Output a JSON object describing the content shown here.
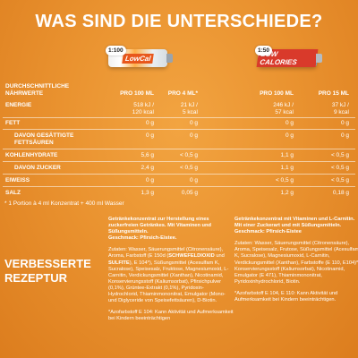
{
  "headline": "WAS SIND DIE UNTERSCHIEDE?",
  "products": [
    {
      "ratio": "1:100",
      "brand": "LowCal",
      "brand_sub": "STARK PLUS"
    },
    {
      "ratio": "1:50",
      "brand": "LOW CALORIES",
      "brand_sub": "PLUS"
    }
  ],
  "table": {
    "title_line1": "DURCHSCHNITTLICHE",
    "title_line2": "NÄHRWERTE",
    "headers": [
      "PRO 100 ML",
      "PRO 4 ML*",
      "PRO 100 ML",
      "PRO 15 ML"
    ],
    "rows": [
      {
        "label": "ENERGIE",
        "sub": false,
        "c1": "518 kJ / 120 kcal",
        "c1a": "518 kJ /",
        "c1b": "120 kcal",
        "c2a": "21 kJ /",
        "c2b": "5 kcal",
        "c3a": "246 kJ /",
        "c3b": "57 kcal",
        "c4a": "37 kJ /",
        "c4b": "9 kcal"
      },
      {
        "label": "FETT",
        "sub": false,
        "c1a": "0 g",
        "c2a": "0 g",
        "c3a": "0 g",
        "c4a": "0 g"
      },
      {
        "label": "DAVON GESÄTTIGTE",
        "label2": "FETTSÄUREN",
        "sub": true,
        "c1a": "0 g",
        "c2a": "0 g",
        "c3a": "0 g",
        "c4a": "0 g"
      },
      {
        "label": "KOHLENHYDRATE",
        "sub": false,
        "c1a": "5,6 g",
        "c2a": "< 0,5 g",
        "c3a": "1,1 g",
        "c4a": "< 0,5 g"
      },
      {
        "label": "DAVON ZUCKER",
        "sub": true,
        "c1a": "2,4 g",
        "c2a": "< 0,5 g",
        "c3a": "1,1 g",
        "c4a": "< 0,5 g"
      },
      {
        "label": "EIWEISS",
        "sub": false,
        "c1a": "0 g",
        "c2a": "0 g",
        "c3a": "< 0,5 g",
        "c4a": "< 0,5 g"
      },
      {
        "label": "SALZ",
        "sub": false,
        "c1a": "1,3 g",
        "c2a": "0,05 g",
        "c3a": "1,2 g",
        "c4a": "0,18 g"
      }
    ]
  },
  "footnote": "* 1 Portion à 4 ml Konzentrat + 400 ml Wasser",
  "improved_line1": "VERBESSERTE",
  "improved_line2": "REZEPTUR",
  "desc1": {
    "intro": "Getränkekonzentrat zur Herstellung eines zuckerfreien Getränkes. Mit Vitaminen und Süßungsmitteln.",
    "flavor": "Geschmack: Pfirsich-Eistee.",
    "ingredients_a": "Zutaten: Wasser, Säuerungsmittel (Citronensäure), Aroma, Farbstoff (E 150d (",
    "ingredients_bold": "SCHWEFELDIOXID",
    "ingredients_mid": " und ",
    "ingredients_bold2": "SULFITE",
    "ingredients_b": "), E 104*), Süßungsmittel (Acesulfam K, Sucralose), Speisesalz, Fruktose, Magnesiumoxid, L-Carnitin, Verdickungsmittel (Xanthan), Nicotinamid, Konservierungsstoff (Kaliumsorbat), Pfirsichpulver (0,1%), Grüntee-Extrakt (0,1%), Pyridoxin-Hydrochlorid, Thiaminmononitrat, Emulgator (Mono- und Diglyceride von Speisefettsäuren), D-Biotin.",
    "warning": "*Azofarbstoff E 104: Kann Aktivität und Aufmerksamkeit bei Kindern beeinträchtigen"
  },
  "desc2": {
    "intro": "Getränkekonzentrat mit Vitaminen und L-Carnitin. Mit einer Zuckerart und mit Süßungsmitteln.",
    "flavor": "Geschmack: Pfirsich-Eistee",
    "ingredients": "Zutaten: Wasser, Säuerungsmittel (Citronensäure), Aroma, Speisesalz, Frutose, Süßungsmittel (Acesulfam K, Sucralose), Magnesiumoxid, L-Carnitin, Verdickungsmittel (Xanthan), Farbstoffe (E 110, E104)*, Konservierungsstoff (Kaliumsorbat), Nicotinamid, Emulgator (E 471), Thiaminmononitrat, Pyridoxinhydrochlorid, Biotin.",
    "warning": "*Azofarbstoff E 104, E 110: Kann Aktivität und Aufmerksamkeit bei Kindern beeinträchtigen."
  }
}
